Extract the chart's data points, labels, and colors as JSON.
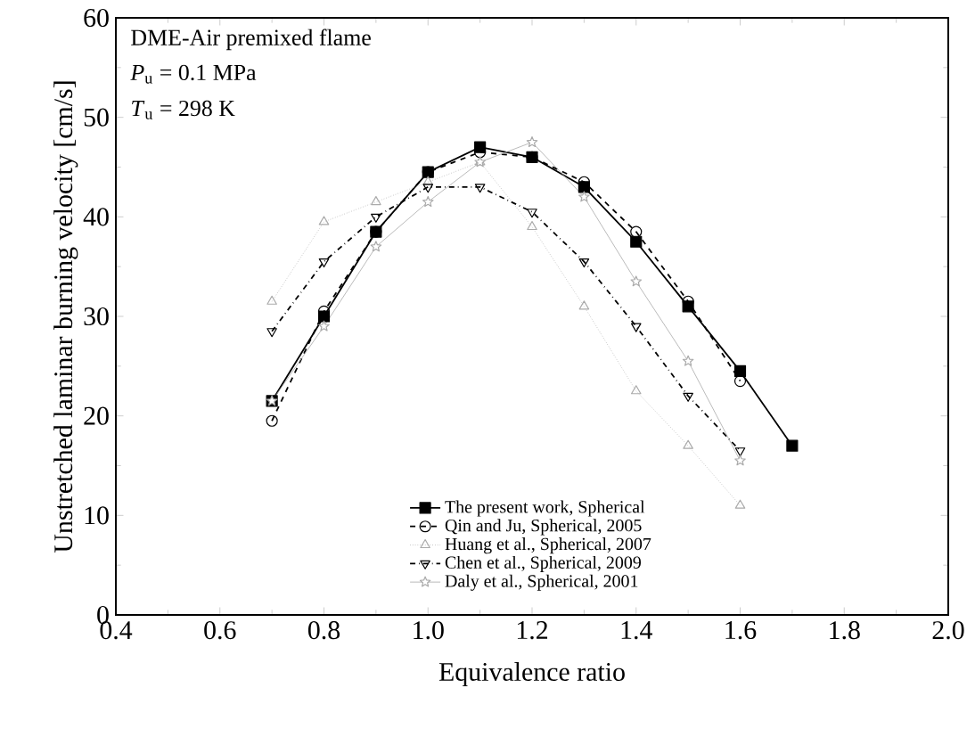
{
  "chart_data": {
    "type": "line",
    "xlabel": "Equivalence ratio",
    "ylabel": "Unstretched laminar burning velocity [cm/s]",
    "annotations": [
      "DME-Air premixed flame",
      "*P*$_{u}$ = 0.1 MPa",
      "*T*$_{u}$ = 298 K"
    ],
    "xlim": [
      0.4,
      2.0
    ],
    "ylim": [
      0,
      60
    ],
    "xticks": [
      {
        "value": 0.4,
        "label": "0.4"
      },
      {
        "value": 0.6,
        "label": "0.6"
      },
      {
        "value": 0.8,
        "label": "0.8"
      },
      {
        "value": 1.0,
        "label": "1.0"
      },
      {
        "value": 1.2,
        "label": "1.2"
      },
      {
        "value": 1.4,
        "label": "1.4"
      },
      {
        "value": 1.6,
        "label": "1.6"
      },
      {
        "value": 1.8,
        "label": "1.8"
      },
      {
        "value": 2.0,
        "label": "2.0"
      }
    ],
    "yticks": [
      0,
      10,
      20,
      30,
      40,
      50,
      60
    ],
    "legend": "bottom",
    "grid": false,
    "series": [
      {
        "name": "The present work, Spherical",
        "color": "#000000",
        "marker": "square",
        "line_style": "solid",
        "x": [
          0.7,
          0.8,
          0.9,
          1.0,
          1.1,
          1.2,
          1.3,
          1.4,
          1.5,
          1.6,
          1.7
        ],
        "values": [
          21.5,
          30,
          38.5,
          44.5,
          47,
          46,
          43,
          37.5,
          31,
          24.5,
          17
        ]
      },
      {
        "name": "Qin and Ju, Spherical, 2005",
        "color": "#000000",
        "marker": "circle",
        "line_style": "dashed",
        "x": [
          0.7,
          0.8,
          0.9,
          1.0,
          1.1,
          1.2,
          1.3,
          1.4,
          1.5,
          1.6
        ],
        "values": [
          19.5,
          30.5,
          38.5,
          44.5,
          46.5,
          46,
          43.5,
          38.5,
          31.5,
          23.5
        ]
      },
      {
        "name": "Huang et al., Spherical, 2007",
        "color": "#aaaaaa",
        "marker": "triangle",
        "line_style": "dotted",
        "x": [
          0.7,
          0.8,
          0.9,
          1.0,
          1.1,
          1.2,
          1.3,
          1.4,
          1.5,
          1.6
        ],
        "values": [
          31.5,
          39.5,
          41.5,
          43.5,
          45.5,
          39,
          31,
          22.5,
          17,
          11
        ]
      },
      {
        "name": "Chen et al., Spherical, 2009",
        "color": "#000000",
        "marker": "triangle down",
        "line_style": "dashdot",
        "x": [
          0.7,
          0.8,
          0.9,
          1.0,
          1.1,
          1.2,
          1.3,
          1.4,
          1.5,
          1.6
        ],
        "values": [
          28.5,
          35.5,
          40,
          43,
          43,
          40.5,
          35.5,
          29,
          22,
          16.5
        ]
      },
      {
        "name": "Daly et al., Spherical, 2001",
        "color": "#aaaaaa",
        "marker": "star",
        "line_style": "solid",
        "x": [
          0.7,
          0.8,
          0.9,
          1.0,
          1.1,
          1.2,
          1.3,
          1.4,
          1.5,
          1.6
        ],
        "values": [
          21.5,
          29,
          37,
          41.5,
          45.5,
          47.5,
          42,
          33.5,
          25.5,
          15.5
        ]
      }
    ]
  }
}
